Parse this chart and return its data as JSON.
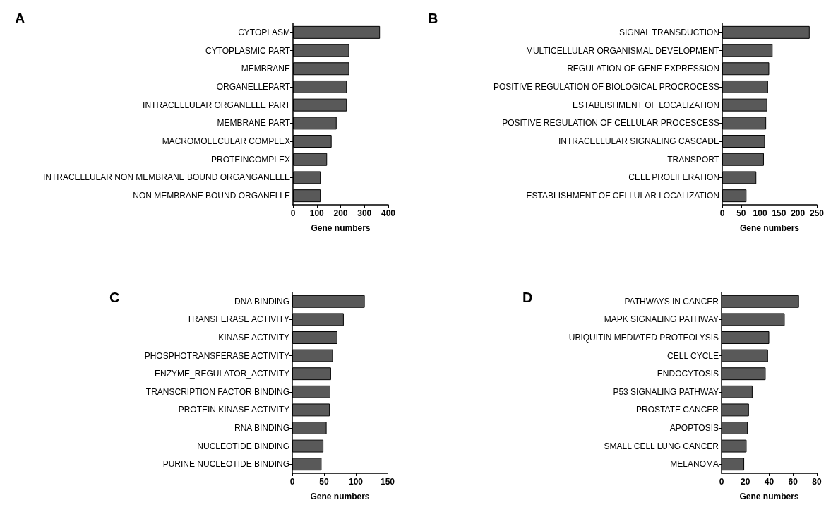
{
  "chart_data": [
    {
      "type": "bar",
      "orientation": "horizontal",
      "title": "A",
      "xlabel": "Gene numbers",
      "color": "#595959",
      "xlim": [
        0,
        400
      ],
      "xticks": [
        0,
        100,
        200,
        300,
        400
      ],
      "categories": [
        "CYTOPLASM",
        "CYTOPLASMIC PART",
        "MEMBRANE",
        "ORGANELLEPART",
        "INTRACELLULAR ORGANELLE PART",
        "MEMBRANE PART",
        "MACROMOLECULAR COMPLEX",
        "PROTEINCOMPLEX",
        "INTRACELLULAR NON MEMBRANE BOUND ORGANGANELLE",
        "NON MEMBRANE BOUND ORGANELLE"
      ],
      "values": [
        365,
        236,
        236,
        226,
        226,
        183,
        162,
        143,
        116,
        116
      ]
    },
    {
      "type": "bar",
      "orientation": "horizontal",
      "title": "B",
      "xlabel": "Gene numbers",
      "color": "#595959",
      "xlim": [
        0,
        250
      ],
      "xticks": [
        0,
        50,
        100,
        150,
        200,
        250
      ],
      "categories": [
        "SIGNAL TRANSDUCTION",
        "MULTICELLULAR ORGANISMAL DEVELOPMENT",
        "REGULATION OF GENE EXPRESSION",
        "POSITIVE REGULATION OF BIOLOGICAL PROCROCESS",
        "ESTABLISHMENT OF LOCALIZATION",
        "POSITIVE REGULATION OF CELLULAR PROCESCESS",
        "INTRACELLULAR SIGNALING CASCADE",
        "TRANSPORT",
        "CELL PROLIFERATION",
        "ESTABLISHMENT OF CELLULAR LOCALIZATION"
      ],
      "values": [
        231,
        133,
        124,
        121,
        119,
        116,
        113,
        110,
        90,
        64
      ]
    },
    {
      "type": "bar",
      "orientation": "horizontal",
      "title": "C",
      "xlabel": "Gene numbers",
      "color": "#595959",
      "xlim": [
        0,
        150
      ],
      "xticks": [
        0,
        50,
        100,
        150
      ],
      "categories": [
        "DNA BINDING",
        "TRANSFERASE ACTIVITY",
        "KINASE ACTIVITY",
        "PHOSPHOTRANSFERASE ACTIVITY",
        "ENZYME_REGULATOR_ACTIVITY",
        "TRANSCRIPTION FACTOR BINDING",
        "PROTEIN KINASE ACTIVITY",
        "RNA BINDING",
        "NUCLEOTIDE BINDING",
        "PURINE NUCLEOTIDE BINDING"
      ],
      "values": [
        114,
        81,
        71,
        64,
        61,
        60,
        59,
        54,
        49,
        46
      ]
    },
    {
      "type": "bar",
      "orientation": "horizontal",
      "title": "D",
      "xlabel": "Gene numbers",
      "color": "#595959",
      "xlim": [
        0,
        80
      ],
      "xticks": [
        0,
        20,
        40,
        60,
        80
      ],
      "categories": [
        "PATHWAYS IN CANCER",
        "MAPK SIGNALING PATHWAY",
        "UBIQUITIN MEDIATED PROTEOLYSIS",
        "CELL CYCLE",
        "ENDOCYTOSIS",
        "P53 SIGNALING PATHWAY",
        "PROSTATE CANCER",
        "APOPTOSIS",
        "SMALL CELL LUNG CANCER",
        "MELANOMA"
      ],
      "values": [
        65,
        53,
        40,
        39,
        37,
        26,
        23,
        22,
        21,
        19
      ]
    }
  ]
}
